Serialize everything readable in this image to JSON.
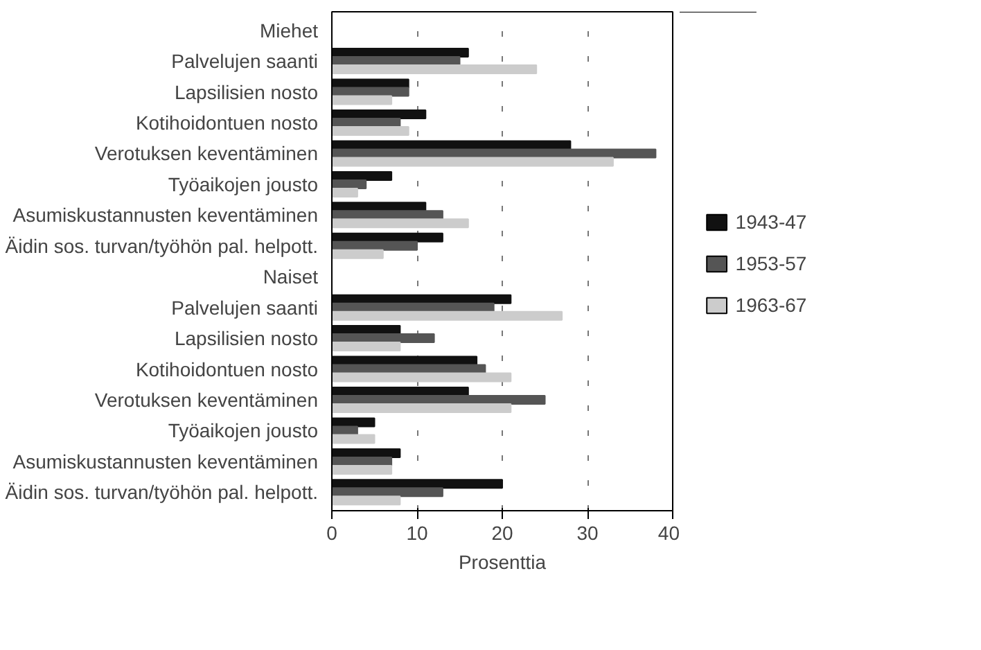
{
  "chart_data": {
    "type": "bar",
    "orientation": "horizontal",
    "xlabel": "Prosenttia",
    "categories": [
      "Miehet",
      "Palvelujen saanti",
      "Lapsilisien nosto",
      "Kotihoidontuen nosto",
      "Verotuksen keventäminen",
      "Työaikojen jousto",
      "Asumiskustannusten keventäminen",
      "Äidin sos. turvan/työhön pal. helpott.",
      "Naiset",
      "Palvelujen saanti",
      "Lapsilisien nosto",
      "Kotihoidontuen nosto",
      "Verotuksen keventäminen",
      "Työaikojen jousto",
      "Asumiskustannusten keventäminen",
      "Äidin sos. turvan/työhön pal. helpott."
    ],
    "series": [
      {
        "name": "1943-47",
        "color": "#111111",
        "values": [
          null,
          16,
          9,
          11,
          28,
          7,
          11,
          13,
          null,
          21,
          8,
          17,
          16,
          5,
          8,
          20
        ]
      },
      {
        "name": "1953-57",
        "color": "#555555",
        "values": [
          null,
          15,
          9,
          8,
          38,
          4,
          13,
          10,
          null,
          19,
          12,
          18,
          25,
          3,
          7,
          13
        ]
      },
      {
        "name": "1963-67",
        "color": "#cccccc",
        "values": [
          null,
          24,
          7,
          9,
          33,
          3,
          16,
          6,
          null,
          27,
          8,
          21,
          21,
          5,
          7,
          8
        ]
      }
    ],
    "xlim": [
      0,
      40
    ],
    "xticks": [
      0,
      10,
      20,
      30,
      40
    ],
    "grid": "x",
    "legend": "right"
  }
}
